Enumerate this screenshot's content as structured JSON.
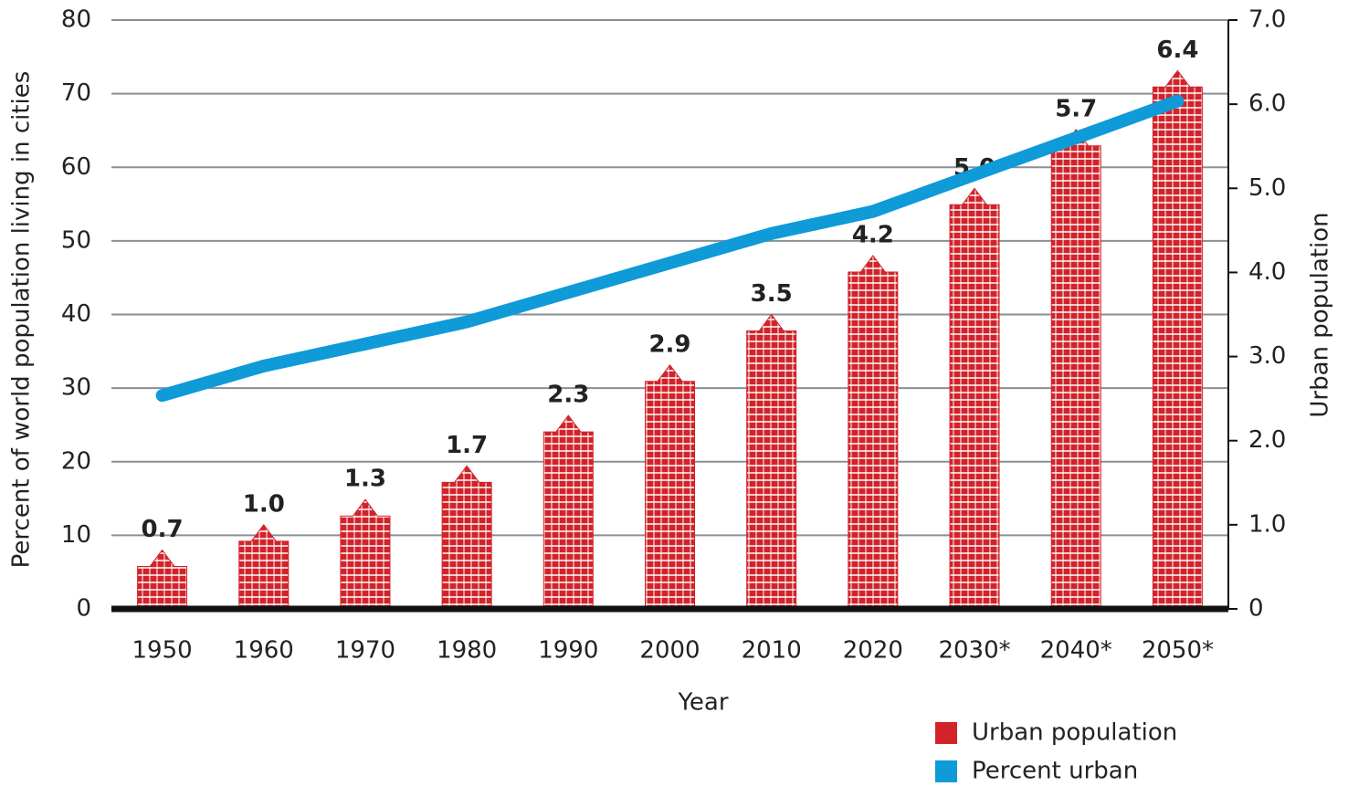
{
  "chart_data": {
    "type": "combo",
    "x_label": "Year",
    "y_label": "Percent of world population living in cities",
    "y2_label": "Urban population",
    "categories": [
      "1950",
      "1960",
      "1970",
      "1980",
      "1990",
      "2000",
      "2010",
      "2020",
      "2030*",
      "2040*",
      "2050*"
    ],
    "series": [
      {
        "name": "Urban population",
        "type": "bar",
        "axis": "y2",
        "color": "#d2232a",
        "values": [
          0.7,
          1.0,
          1.3,
          1.7,
          2.3,
          2.9,
          3.5,
          4.2,
          5.0,
          5.7,
          6.4
        ],
        "value_labels": [
          "0.7",
          "1.0",
          "1.3",
          "1.7",
          "2.3",
          "2.9",
          "3.5",
          "4.2",
          "5.0",
          "5.7",
          "6.4"
        ]
      },
      {
        "name": "Percent urban",
        "type": "line",
        "color": "#0f9ad8",
        "values": [
          29,
          33,
          36,
          39,
          43,
          47,
          51,
          54,
          59,
          64,
          69
        ]
      }
    ],
    "ylim": [
      0,
      80
    ],
    "yticks": [
      0,
      10,
      20,
      30,
      40,
      50,
      60,
      70,
      80
    ],
    "y2lim": [
      0,
      7
    ],
    "y2ticks": [
      0,
      {
        "value": 1,
        "label": "1.0"
      },
      {
        "value": 2,
        "label": "2.0"
      },
      {
        "value": 3,
        "label": "3.0"
      },
      {
        "value": 4,
        "label": "4.0"
      },
      {
        "value": 5,
        "label": "5.0"
      },
      {
        "value": 6,
        "label": "6.0"
      },
      {
        "value": 7,
        "label": "7.0"
      }
    ],
    "grid": true
  }
}
